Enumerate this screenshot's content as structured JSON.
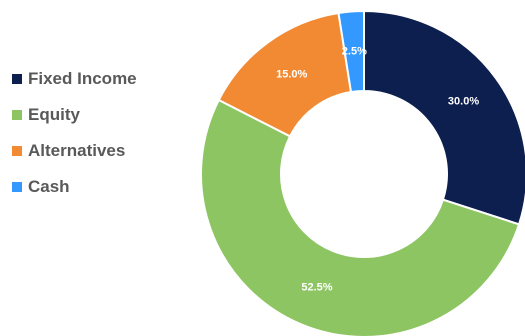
{
  "chart_data": {
    "type": "pie",
    "variant": "donut",
    "legend_position": "left",
    "categories": [
      "Fixed Income",
      "Equity",
      "Alternatives",
      "Cash"
    ],
    "values": [
      30.0,
      52.5,
      15.0,
      2.5
    ],
    "data_labels": [
      "30.0%",
      "52.5%",
      "15.0%",
      "2.5%"
    ],
    "colors": [
      "#0d1f4e",
      "#8dc563",
      "#f28a33",
      "#3399ff"
    ]
  }
}
